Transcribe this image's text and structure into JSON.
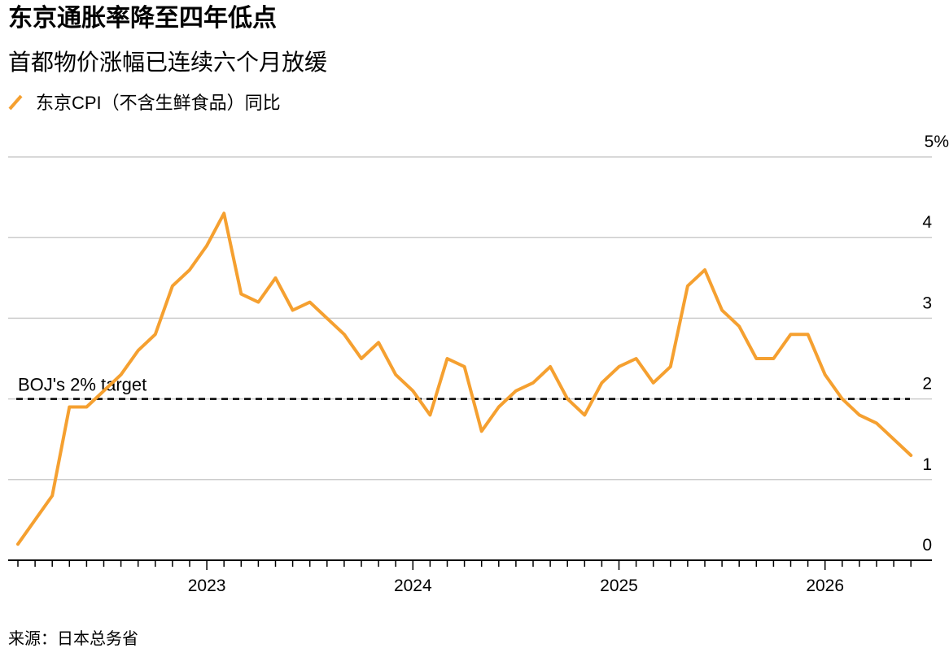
{
  "chart_data": {
    "type": "line",
    "title": "东京通胀率降至四年低点",
    "subtitle": "首都物价涨幅已连续六个月放缓",
    "source": "来源：日本总务省",
    "categories": [
      null,
      null,
      null,
      null,
      null,
      null,
      null,
      null,
      null,
      null,
      null,
      "2023",
      null,
      null,
      null,
      null,
      null,
      null,
      null,
      null,
      null,
      null,
      null,
      "2024",
      null,
      null,
      null,
      null,
      null,
      null,
      null,
      null,
      null,
      null,
      null,
      "2025",
      null,
      null,
      null,
      null,
      null,
      null,
      null,
      null,
      null,
      null,
      null,
      "2026",
      null,
      null,
      null,
      null,
      null
    ],
    "series": [
      {
        "name": "东京CPI（不含生鲜食品）同比",
        "color": "#f5a030",
        "values": [
          0.2,
          0.5,
          0.8,
          1.9,
          1.9,
          2.1,
          2.3,
          2.6,
          2.8,
          3.4,
          3.6,
          3.9,
          4.3,
          3.3,
          3.2,
          3.5,
          3.1,
          3.2,
          3.0,
          2.8,
          2.5,
          2.7,
          2.3,
          2.1,
          1.8,
          2.5,
          2.4,
          1.6,
          1.9,
          2.1,
          2.2,
          2.4,
          2.0,
          1.8,
          2.2,
          2.4,
          2.5,
          2.2,
          2.4,
          3.4,
          3.6,
          3.1,
          2.9,
          2.5,
          2.5,
          2.8,
          2.8,
          2.3,
          2.0,
          1.8,
          1.7,
          1.5,
          1.3
        ]
      }
    ],
    "ylim": [
      0,
      5
    ],
    "yticks": [
      0,
      1,
      2,
      3,
      4,
      {
        "value": 5,
        "label": "5%"
      }
    ],
    "grid": true,
    "annotation": {
      "text": "BOJ's 2% target",
      "value": 2
    }
  }
}
